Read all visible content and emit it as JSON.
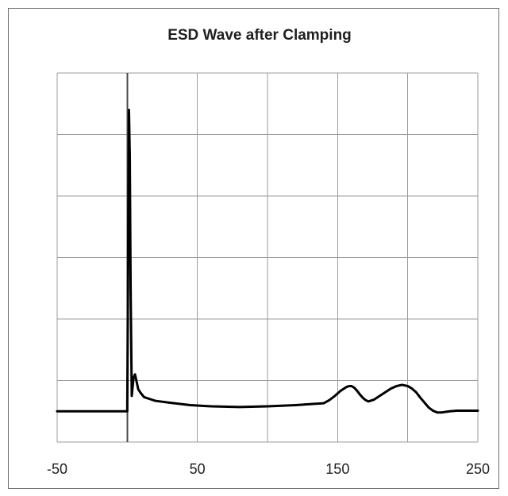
{
  "chart_data": {
    "type": "line",
    "title": "ESD Wave after Clamping",
    "xlabel": "",
    "ylabel": "",
    "xlim": [
      -50,
      250
    ],
    "ylim": [
      -0.5,
      5.5
    ],
    "x_ticks": [
      -50,
      0,
      50,
      100,
      150,
      200,
      250
    ],
    "x_tick_labels": [
      "-50",
      "",
      "50",
      "",
      "150",
      "",
      "250"
    ],
    "y_ticks": [
      -0.5,
      0.5,
      1.5,
      2.5,
      3.5,
      4.5,
      5.5
    ],
    "show_y_tick_labels": false,
    "grid": true,
    "legend": "none",
    "line_color": "#000000",
    "grid_color": "#9b9b9b",
    "series": [
      {
        "x": [
          -50,
          -1,
          0,
          0.6,
          1.2,
          1.8,
          2.4,
          3.2,
          4.5,
          5.5,
          6.5,
          7.8,
          9.5,
          12,
          16,
          20,
          30,
          45,
          60,
          80,
          100,
          120,
          140,
          144,
          148,
          152,
          156,
          158,
          160,
          162,
          164,
          166,
          168,
          170,
          172,
          176,
          180,
          184,
          188,
          192,
          196,
          200,
          203,
          206,
          209,
          212,
          215,
          218,
          221,
          224,
          227,
          230,
          235,
          240,
          245,
          250
        ],
        "y": [
          0,
          0,
          0,
          2.5,
          4.9,
          4.15,
          2.0,
          0.25,
          0.55,
          0.6,
          0.5,
          0.36,
          0.3,
          0.23,
          0.2,
          0.17,
          0.14,
          0.1,
          0.08,
          0.07,
          0.08,
          0.1,
          0.13,
          0.18,
          0.25,
          0.33,
          0.39,
          0.41,
          0.41,
          0.38,
          0.33,
          0.27,
          0.22,
          0.18,
          0.16,
          0.19,
          0.25,
          0.31,
          0.37,
          0.41,
          0.43,
          0.41,
          0.37,
          0.31,
          0.22,
          0.14,
          0.06,
          0.01,
          -0.02,
          -0.02,
          -0.01,
          0.0,
          0.01,
          0.01,
          0.01,
          0.01
        ]
      }
    ]
  }
}
